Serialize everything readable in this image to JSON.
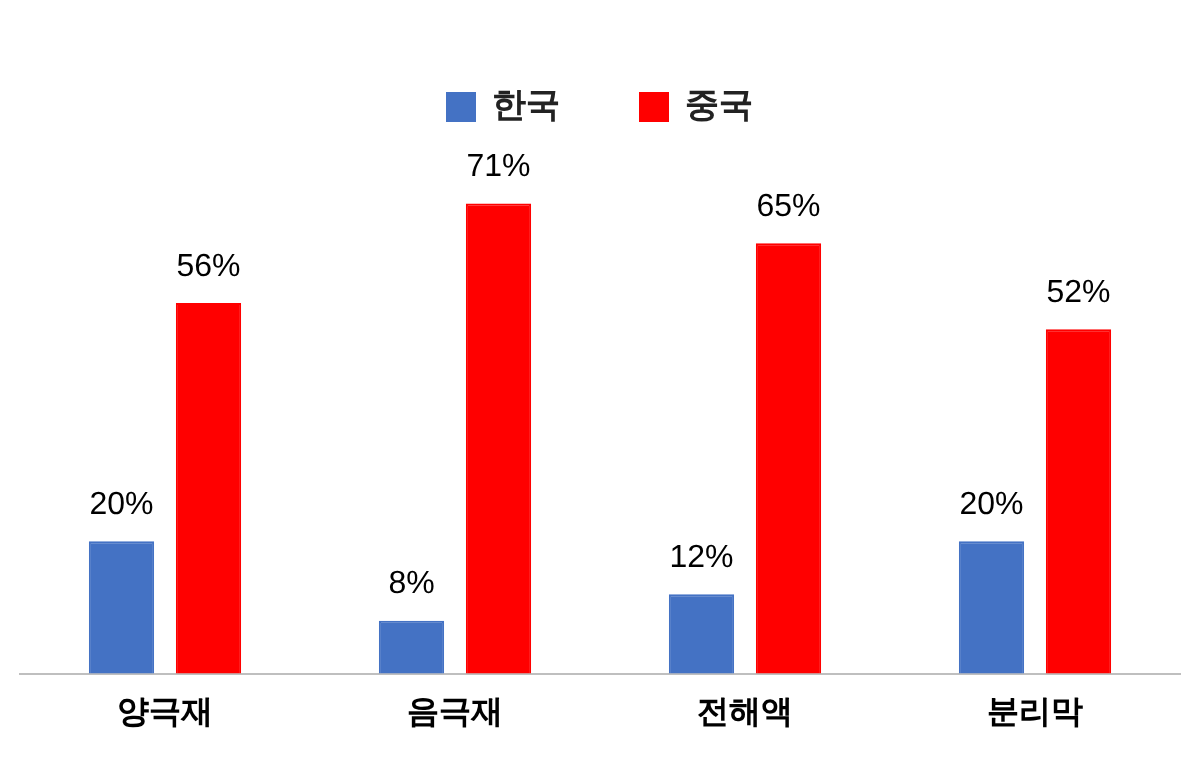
{
  "chart_data": {
    "type": "bar",
    "categories": [
      "양극재",
      "음극재",
      "전해액",
      "분리막"
    ],
    "series": [
      {
        "name": "한국",
        "color": "#4472c4",
        "values": [
          20,
          8,
          12,
          20
        ],
        "value_labels": [
          "20%",
          "8%",
          "12%",
          "20%"
        ]
      },
      {
        "name": "중국",
        "color": "#ff0000",
        "values": [
          56,
          71,
          65,
          52
        ],
        "value_labels": [
          "56%",
          "71%",
          "65%",
          "52%"
        ]
      }
    ],
    "legend": "top",
    "grid": false
  }
}
